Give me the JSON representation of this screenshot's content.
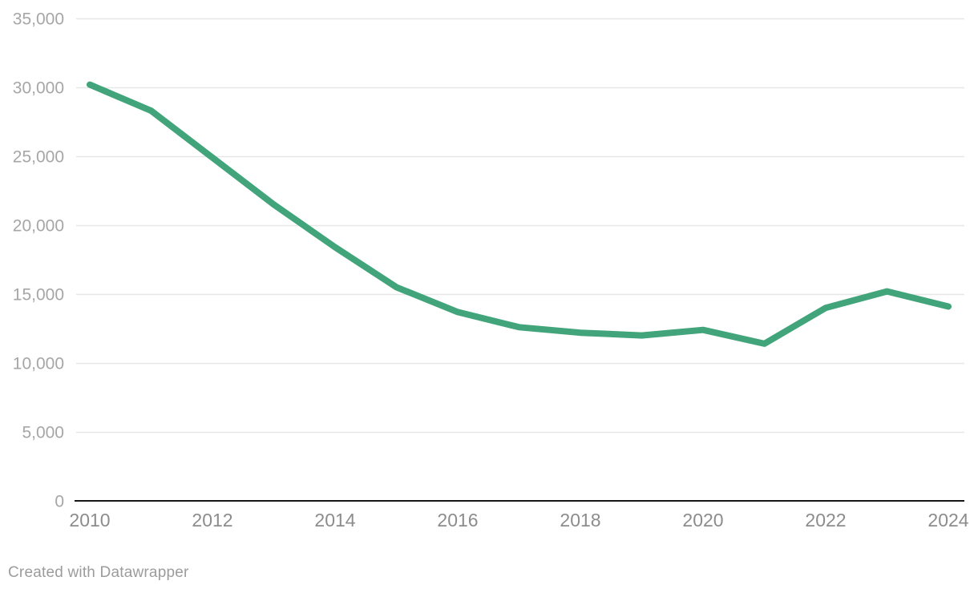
{
  "chart_data": {
    "type": "line",
    "x": [
      2010,
      2011,
      2012,
      2013,
      2014,
      2015,
      2016,
      2017,
      2018,
      2019,
      2020,
      2021,
      2022,
      2023,
      2024
    ],
    "series": [
      {
        "values": [
          30200,
          28300,
          24900,
          21500,
          18400,
          15500,
          13700,
          12600,
          12200,
          12000,
          12400,
          11400,
          14000,
          15200,
          14100
        ]
      }
    ],
    "xlim": [
      2010,
      2024
    ],
    "ylim": [
      0,
      35000
    ],
    "ytick_values": [
      35000,
      30000,
      25000,
      20000,
      15000,
      10000,
      5000,
      0
    ],
    "ytick_labels": [
      "35,000",
      "30,000",
      "25,000",
      "20,000",
      "15,000",
      "10,000",
      "5,000",
      "0"
    ],
    "xtick_values": [
      2010,
      2012,
      2014,
      2016,
      2018,
      2020,
      2022,
      2024
    ],
    "xtick_labels": [
      "2010",
      "2012",
      "2014",
      "2016",
      "2018",
      "2020",
      "2022",
      "2024"
    ],
    "grid": "horizontal",
    "legend": "none"
  },
  "colors": {
    "line": "#42a47a",
    "grid": "#e7e7e7",
    "axis": "#161616",
    "y_tick_label": "#a6a6a6",
    "x_tick_label": "#8c8c8c",
    "credit_text": "#9c9c9c",
    "background": "#ffffff"
  },
  "footer": {
    "credit": "Created with Datawrapper"
  }
}
